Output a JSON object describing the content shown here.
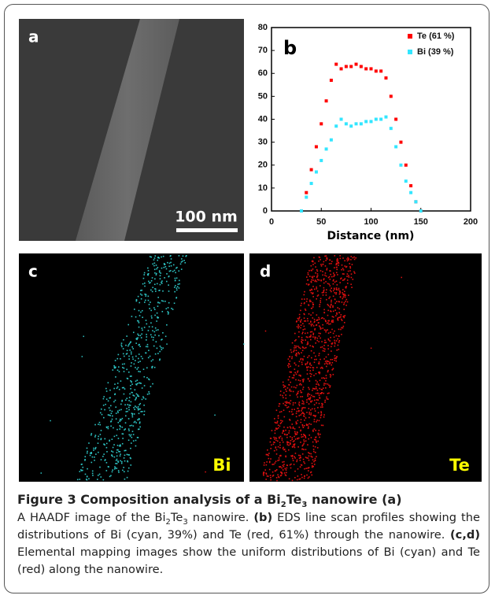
{
  "panels": {
    "a": {
      "label": "a",
      "scale_bar": "100 nm"
    },
    "c": {
      "label": "c",
      "element": "Bi"
    },
    "d": {
      "label": "d",
      "element": "Te"
    }
  },
  "chart_data": {
    "type": "scatter",
    "panel_label": "b",
    "x_label": "Distance (nm)",
    "x": [
      30,
      35,
      40,
      45,
      50,
      55,
      60,
      65,
      70,
      75,
      80,
      85,
      90,
      95,
      100,
      105,
      110,
      115,
      120,
      125,
      130,
      135,
      140,
      145,
      150
    ],
    "series": [
      {
        "name": "Te (61 %)",
        "color": "#ff0000",
        "values": [
          0,
          8,
          18,
          28,
          38,
          48,
          57,
          64,
          62,
          63,
          63,
          64,
          63,
          62,
          62,
          61,
          61,
          58,
          50,
          40,
          30,
          20,
          11,
          4,
          0
        ]
      },
      {
        "name": "Bi (39 %)",
        "color": "#33e6ff",
        "values": [
          0,
          6,
          12,
          17,
          22,
          27,
          31,
          37,
          40,
          38,
          37,
          38,
          38,
          39,
          39,
          40,
          40,
          41,
          36,
          28,
          20,
          13,
          8,
          4,
          0
        ]
      }
    ],
    "xlim": [
      0,
      200
    ],
    "ylim": [
      0,
      80
    ],
    "xticks": [
      0,
      50,
      100,
      150,
      200
    ],
    "yticks": [
      0,
      10,
      20,
      30,
      40,
      50,
      60,
      70,
      80
    ]
  },
  "caption": {
    "title": [
      "Figure 3 Composition analysis of a Bi",
      "2",
      "Te",
      "3",
      " nanowire (a)"
    ],
    "body": [
      "A HAADF image of the Bi",
      "2",
      "Te",
      "3",
      " nanowire. ",
      "(b)",
      " EDS line scan profiles showing the distributions of Bi (cyan, 39%) and Te (red, 61%) through the nanowire. ",
      "(c,d)",
      " Elemental mapping images show the uniform distributions of Bi (cyan) and Te (red) along the nanowire."
    ]
  }
}
